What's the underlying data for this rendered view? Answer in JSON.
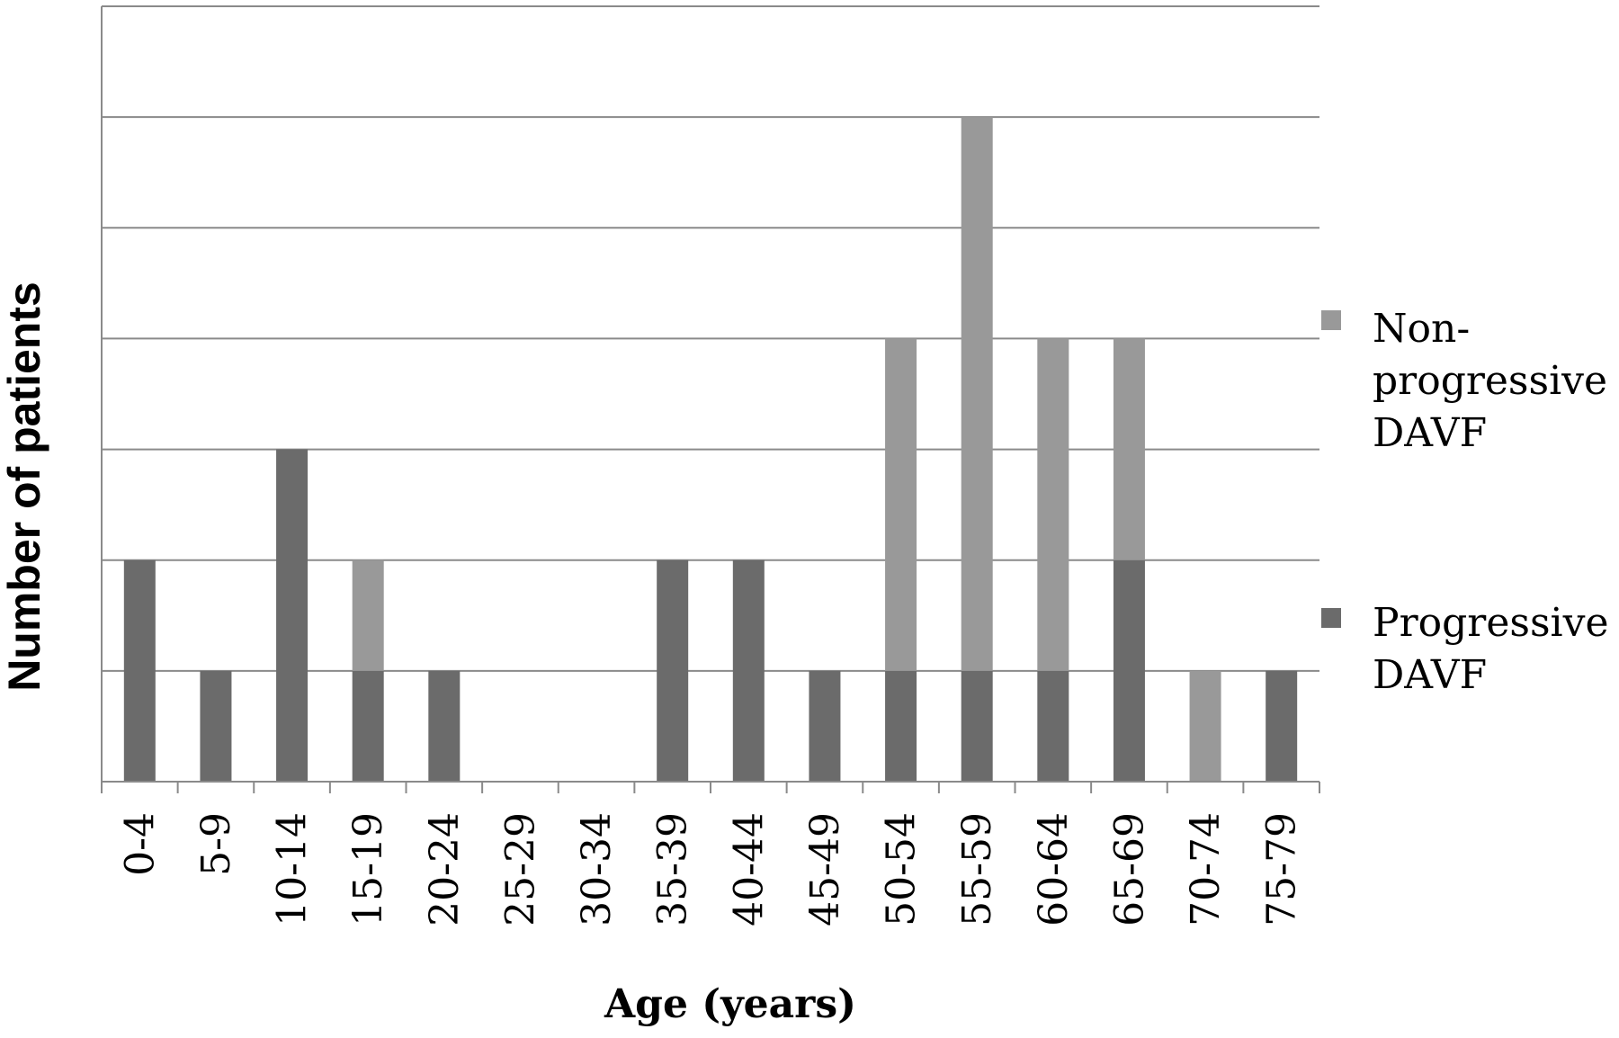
{
  "chart_data": {
    "type": "bar",
    "stacked": true,
    "xlabel": "Age (years)",
    "ylabel": "Number of patients",
    "ylim": [
      0,
      7
    ],
    "y_ticks_labeled": false,
    "grid": true,
    "legend_position": "right",
    "categories": [
      "0-4",
      "5-9",
      "10-14",
      "15-19",
      "20-24",
      "25-29",
      "30-34",
      "35-39",
      "40-44",
      "45-49",
      "50-54",
      "55-59",
      "60-64",
      "65-69",
      "70-74",
      "75-79"
    ],
    "series": [
      {
        "name": "Progressive DAVF",
        "color": "#6b6b6b",
        "values": [
          2,
          1,
          3,
          1,
          1,
          0,
          0,
          2,
          2,
          1,
          1,
          1,
          1,
          2,
          0,
          1
        ]
      },
      {
        "name": "Non-progressive DAVF",
        "color": "#999999",
        "values": [
          0,
          0,
          0,
          1,
          0,
          0,
          0,
          0,
          0,
          0,
          3,
          5,
          3,
          2,
          1,
          0
        ]
      }
    ],
    "legend": [
      {
        "series": "Non-progressive DAVF",
        "lines": [
          "Non-",
          "progressive",
          "DAVF"
        ],
        "color": "#999999"
      },
      {
        "series": "Progressive DAVF",
        "lines": [
          "Progressive",
          "DAVF"
        ],
        "color": "#6b6b6b"
      }
    ]
  }
}
